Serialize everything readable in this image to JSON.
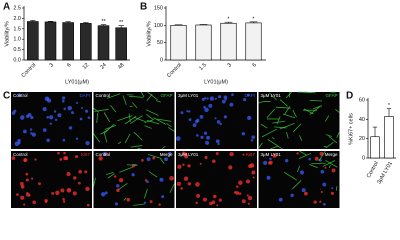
{
  "chart_data": [
    {
      "type": "bar",
      "panel": "A",
      "ylabel": "Viability/%",
      "xlabel": "LY01(μM)",
      "categories": [
        "Control",
        "3",
        "6",
        "12",
        "24",
        "48"
      ],
      "values": [
        1.85,
        1.83,
        1.8,
        1.76,
        1.65,
        1.55
      ],
      "errors": [
        0.05,
        0.03,
        0.04,
        0.04,
        0.05,
        0.1
      ],
      "significance": [
        null,
        null,
        null,
        null,
        "**",
        "**"
      ],
      "color": "#2a2a2a",
      "edgecolor": "#000000",
      "ylim": [
        0,
        2.5
      ],
      "yticks": [
        {
          "value": 0,
          "label": "0.0"
        },
        0.5,
        {
          "value": 1,
          "label": "1.0"
        },
        1.5,
        {
          "value": 2,
          "label": "2.0"
        },
        2.5
      ]
    },
    {
      "type": "bar",
      "panel": "B",
      "ylabel": "Viability/%",
      "xlabel": "LY01(μM)",
      "categories": [
        "Control",
        "1.5",
        "3",
        "6"
      ],
      "values": [
        100,
        101,
        106,
        107
      ],
      "errors": [
        1.5,
        1.5,
        3,
        3
      ],
      "significance": [
        null,
        null,
        "*",
        "*"
      ],
      "color": "#f2f2f2",
      "edgecolor": "#000000",
      "ylim": [
        0,
        150
      ],
      "yticks": [
        0,
        50,
        100,
        150
      ]
    },
    {
      "type": "bar",
      "panel": "D",
      "ylabel": "%Ki67+ cells",
      "categories": [
        "Control",
        "3μM LY01"
      ],
      "values": [
        22,
        43
      ],
      "errors": [
        10,
        8
      ],
      "significance": [
        null,
        "*"
      ],
      "color": "#ffffff",
      "edgecolor": "#000000",
      "ylim": [
        0,
        60
      ],
      "yticks": [
        0,
        20,
        40,
        60
      ]
    }
  ],
  "panel_c": {
    "panel": "C",
    "tiles": [
      {
        "condition": "Control",
        "stain": "DAPI",
        "color": "#3a5cff"
      },
      {
        "condition": "Control",
        "stain": "GFAP",
        "color": "#3fd23f"
      },
      {
        "condition": "3μM LY01",
        "stain": "DAPI",
        "color": "#3a5cff"
      },
      {
        "condition": "3μM LY01",
        "stain": "GFAP",
        "color": "#3fd23f"
      },
      {
        "condition": "Control",
        "stain": "Ki67",
        "color": "#ff3030"
      },
      {
        "condition": "Control",
        "stain": "Merge",
        "color": "#ffffff"
      },
      {
        "condition": "3μM LY01",
        "stain": "Ki67",
        "color": "#ff3030"
      },
      {
        "condition": "3μM LY01",
        "stain": "Merge",
        "color": "#ffffff"
      }
    ]
  }
}
